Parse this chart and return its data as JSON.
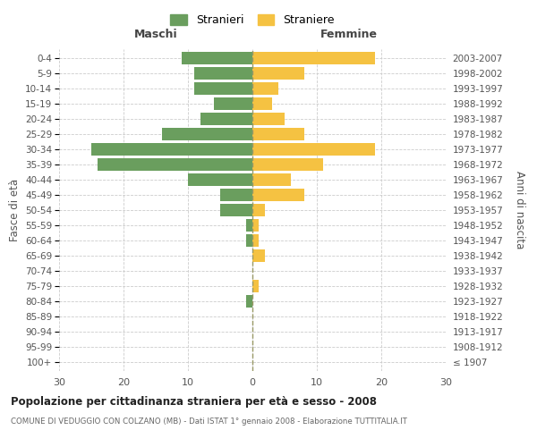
{
  "age_groups": [
    "100+",
    "95-99",
    "90-94",
    "85-89",
    "80-84",
    "75-79",
    "70-74",
    "65-69",
    "60-64",
    "55-59",
    "50-54",
    "45-49",
    "40-44",
    "35-39",
    "30-34",
    "25-29",
    "20-24",
    "15-19",
    "10-14",
    "5-9",
    "0-4"
  ],
  "birth_years": [
    "≤ 1907",
    "1908-1912",
    "1913-1917",
    "1918-1922",
    "1923-1927",
    "1928-1932",
    "1933-1937",
    "1938-1942",
    "1943-1947",
    "1948-1952",
    "1953-1957",
    "1958-1962",
    "1963-1967",
    "1968-1972",
    "1973-1977",
    "1978-1982",
    "1983-1987",
    "1988-1992",
    "1993-1997",
    "1998-2002",
    "2003-2007"
  ],
  "males": [
    0,
    0,
    0,
    0,
    1,
    0,
    0,
    0,
    1,
    1,
    5,
    5,
    10,
    24,
    25,
    14,
    8,
    6,
    9,
    9,
    11
  ],
  "females": [
    0,
    0,
    0,
    0,
    0,
    1,
    0,
    2,
    1,
    1,
    2,
    8,
    6,
    11,
    19,
    8,
    5,
    3,
    4,
    8,
    19
  ],
  "male_color": "#6a9e5e",
  "female_color": "#f5c242",
  "title": "Popolazione per cittadinanza straniera per età e sesso - 2008",
  "subtitle": "COMUNE DI VEDUGGIO CON COLZANO (MB) - Dati ISTAT 1° gennaio 2008 - Elaborazione TUTTITALIA.IT",
  "xlabel_left": "Maschi",
  "xlabel_right": "Femmine",
  "ylabel_left": "Fasce di età",
  "ylabel_right": "Anni di nascita",
  "legend_male": "Stranieri",
  "legend_female": "Straniere",
  "xlim": 30,
  "background_color": "#ffffff",
  "grid_color": "#cccccc",
  "bar_height": 0.8
}
